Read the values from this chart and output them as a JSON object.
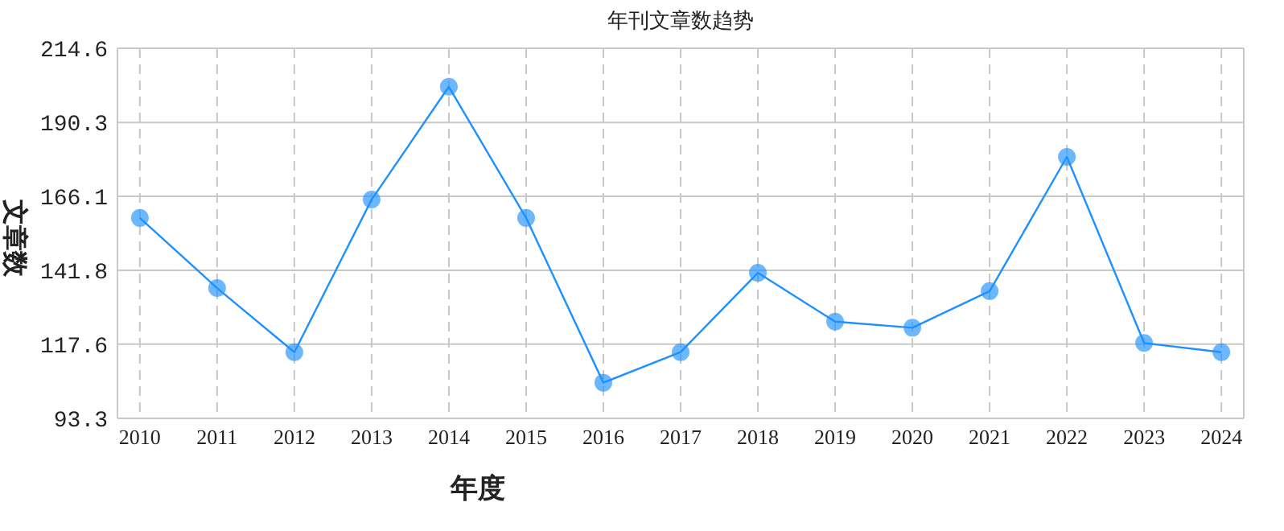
{
  "chart_data": {
    "type": "line",
    "title": "年刊文章数趋势",
    "xlabel": "年度",
    "ylabel": "文章数",
    "categories": [
      "2010",
      "2011",
      "2012",
      "2013",
      "2014",
      "2015",
      "2016",
      "2017",
      "2018",
      "2019",
      "2020",
      "2021",
      "2022",
      "2023",
      "2024"
    ],
    "series": [
      {
        "color": "#1e90ff",
        "values": [
          159,
          136,
          115,
          165,
          202,
          159,
          105,
          115,
          141,
          125,
          123,
          135,
          179,
          118,
          115
        ]
      }
    ],
    "ylim": [
      93.3,
      214.6
    ],
    "yticks": [
      93.3,
      117.6,
      141.8,
      166.1,
      190.3,
      214.6
    ],
    "grid": true,
    "marker": "circle",
    "line_style": "solid"
  }
}
